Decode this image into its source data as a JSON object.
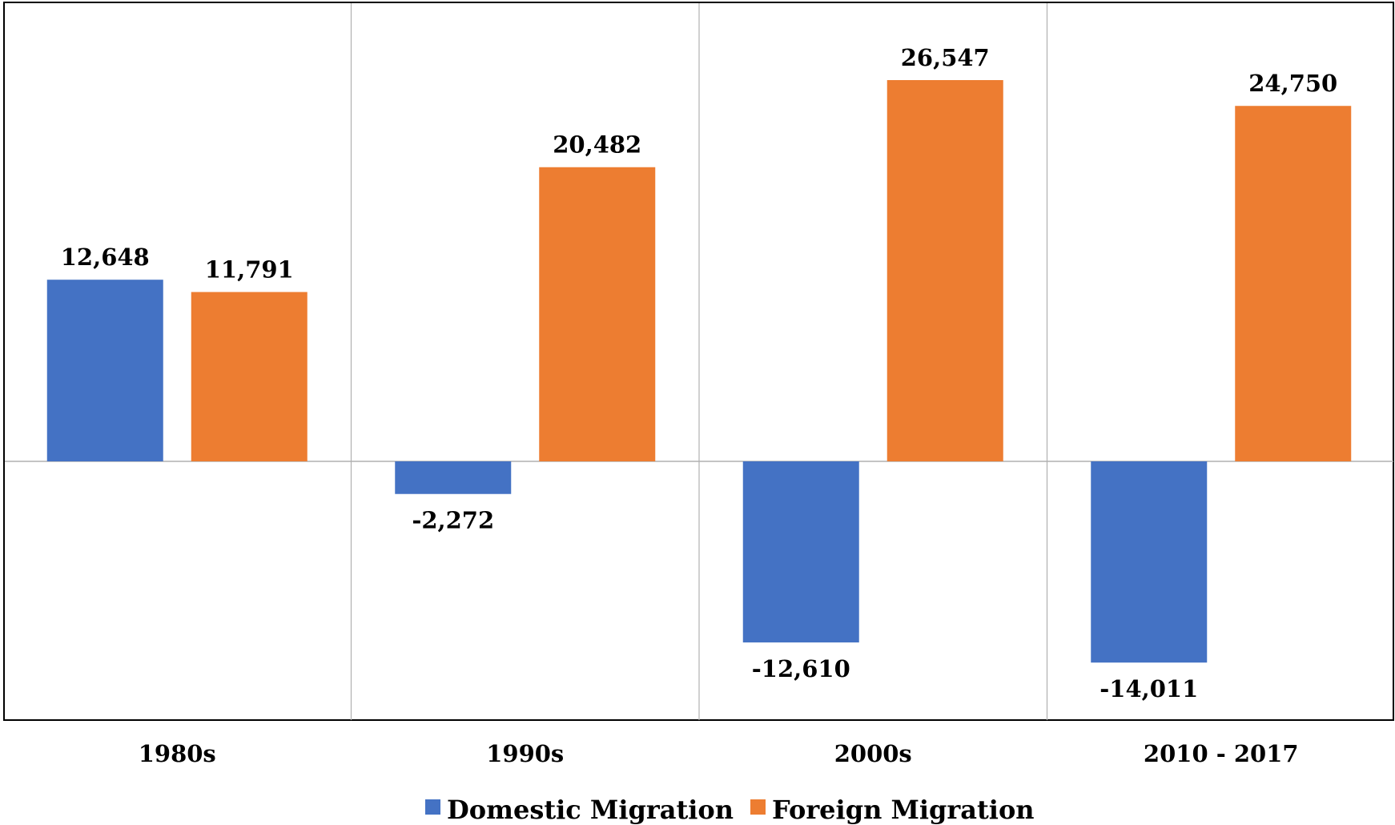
{
  "chart_data": {
    "type": "bar",
    "categories": [
      "1980s",
      "1990s",
      "2000s",
      "2010 - 2017"
    ],
    "series": [
      {
        "name": "Domestic Migration",
        "color": "#4472C4",
        "values": [
          12648,
          -2272,
          -12610,
          -14011
        ],
        "labels": [
          "12,648",
          "-2,272",
          "-12,610",
          "-14,011"
        ]
      },
      {
        "name": "Foreign Migration",
        "color": "#ED7D31",
        "values": [
          11791,
          20482,
          26547,
          24750
        ],
        "labels": [
          "11,791",
          "20,482",
          "26,547",
          "24,750"
        ]
      }
    ],
    "ylim": [
      -18000,
      32000
    ],
    "legend": "bottom",
    "grid": "vertical category separators"
  }
}
